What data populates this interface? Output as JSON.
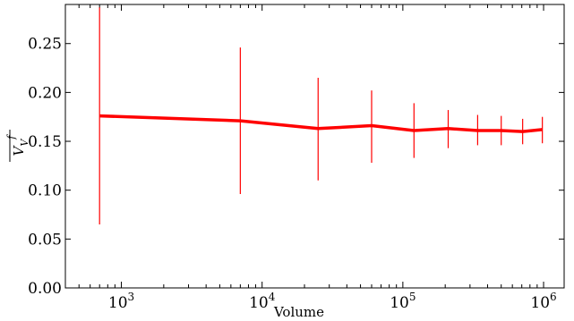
{
  "chart_data": {
    "type": "line",
    "title": "",
    "xlabel": "Volume",
    "ylabel": "V_V^f",
    "x_scale": "log",
    "xlim": [
      400,
      1400000
    ],
    "ylim": [
      0.0,
      0.29
    ],
    "grid": false,
    "legend": "none",
    "series_color": "#ff0000",
    "x": [
      700,
      7000,
      25000,
      60000,
      120000,
      210000,
      340000,
      500000,
      710000,
      980000
    ],
    "series": [
      {
        "values": [
          0.176,
          0.171,
          0.163,
          0.166,
          0.161,
          0.163,
          0.161,
          0.161,
          0.16,
          0.162
        ],
        "err_low": [
          0.065,
          0.096,
          0.11,
          0.128,
          0.133,
          0.143,
          0.146,
          0.146,
          0.147,
          0.148
        ],
        "err_high": [
          0.287,
          0.246,
          0.215,
          0.202,
          0.189,
          0.182,
          0.177,
          0.176,
          0.173,
          0.175
        ]
      }
    ],
    "y_ticks": [
      {
        "value": 0.0,
        "label": "0.00"
      },
      {
        "value": 0.05,
        "label": "0.05"
      },
      {
        "value": 0.1,
        "label": "0.10"
      },
      {
        "value": 0.15,
        "label": "0.15"
      },
      {
        "value": 0.2,
        "label": "0.20"
      },
      {
        "value": 0.25,
        "label": "0.25"
      }
    ],
    "x_ticks": [
      {
        "value": 1000,
        "base": "10",
        "exp": "3"
      },
      {
        "value": 10000,
        "base": "10",
        "exp": "4"
      },
      {
        "value": 100000,
        "base": "10",
        "exp": "5"
      },
      {
        "value": 1000000,
        "base": "10",
        "exp": "6"
      }
    ]
  }
}
